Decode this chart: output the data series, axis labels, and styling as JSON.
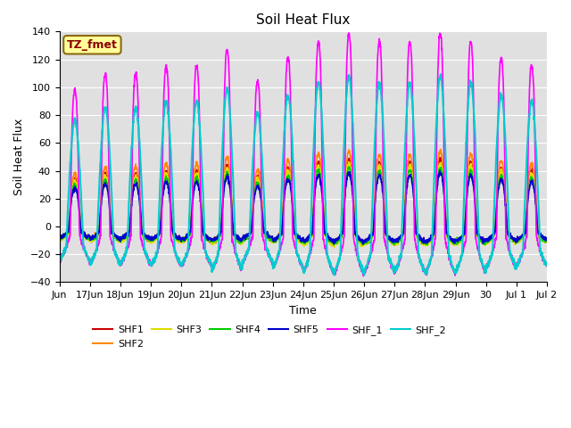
{
  "title": "Soil Heat Flux",
  "xlabel": "Time",
  "ylabel": "Soil Heat Flux",
  "ylim": [
    -40,
    140
  ],
  "xlim_days": [
    0,
    16
  ],
  "background_color": "#ffffff",
  "plot_bg_color": "#e0e0e0",
  "grid_color": "#ffffff",
  "annotation_text": "TZ_fmet",
  "annotation_bg": "#ffff99",
  "annotation_border": "#8B6914",
  "series": {
    "SHF1": {
      "color": "#cc0000",
      "lw": 1.2
    },
    "SHF2": {
      "color": "#ff8800",
      "lw": 1.2
    },
    "SHF3": {
      "color": "#dddd00",
      "lw": 1.2
    },
    "SHF4": {
      "color": "#00cc00",
      "lw": 1.2
    },
    "SHF5": {
      "color": "#0000cc",
      "lw": 1.2
    },
    "SHF_1": {
      "color": "#ff00ff",
      "lw": 1.2
    },
    "SHF_2": {
      "color": "#00cccc",
      "lw": 1.5
    }
  },
  "tick_labels": [
    "Jun",
    "17Jun",
    "18Jun",
    "19Jun",
    "20Jun",
    "21Jun",
    "22Jun",
    "23Jun",
    "24Jun",
    "25Jun",
    "26Jun",
    "27Jun",
    "28Jun",
    "29Jun",
    "30",
    "Jul 1",
    "Jul 2"
  ],
  "tick_positions": [
    0,
    1,
    2,
    3,
    4,
    5,
    6,
    7,
    8,
    9,
    10,
    11,
    12,
    13,
    14,
    15,
    16
  ],
  "yticks": [
    -40,
    -20,
    0,
    20,
    40,
    60,
    80,
    100,
    120,
    140
  ]
}
